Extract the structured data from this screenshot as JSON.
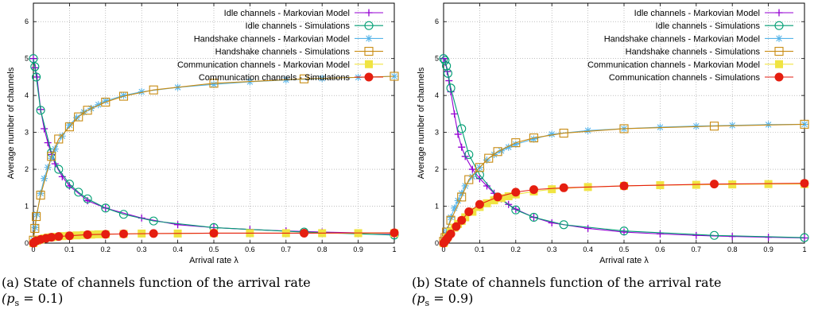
{
  "chart_data": [
    {
      "type": "line",
      "xlabel": "Arrival rate λ",
      "ylabel": "Average number of channels",
      "xlim": [
        0,
        1
      ],
      "ylim": [
        0,
        6.5
      ],
      "xticks": [
        "0",
        "0.1",
        "0.2",
        "0.3",
        "0.4",
        "0.5",
        "0.6",
        "0.7",
        "0.8",
        "0.9",
        "1"
      ],
      "yticks": [
        "0",
        "1",
        "2",
        "3",
        "4",
        "5",
        "6"
      ],
      "grid": true,
      "legend_position": "top-right",
      "series": [
        {
          "name": "Idle channels - Markovian Model",
          "color": "#9400d3",
          "marker": "plus",
          "x": [
            0,
            0.005,
            0.01,
            0.02,
            0.03,
            0.04,
            0.05,
            0.06,
            0.08,
            0.1,
            0.15,
            0.2,
            0.3,
            0.4,
            0.5,
            0.6,
            0.7,
            0.8,
            0.9,
            1
          ],
          "y": [
            5.0,
            4.75,
            4.5,
            3.62,
            3.1,
            2.72,
            2.4,
            2.15,
            1.8,
            1.55,
            1.15,
            0.95,
            0.68,
            0.5,
            0.42,
            0.37,
            0.33,
            0.3,
            0.28,
            0.25
          ]
        },
        {
          "name": "Idle channels - Simulations",
          "color": "#009e73",
          "marker": "circle",
          "x": [
            0,
            0.004,
            0.008,
            0.02,
            0.05,
            0.07,
            0.1,
            0.125,
            0.15,
            0.2,
            0.25,
            0.333,
            0.5,
            0.75,
            1
          ],
          "y": [
            5.0,
            4.78,
            4.5,
            3.6,
            2.45,
            2.0,
            1.6,
            1.38,
            1.2,
            0.95,
            0.78,
            0.6,
            0.42,
            0.3,
            0.22
          ]
        },
        {
          "name": "Handshake channels - Markovian Model",
          "color": "#56b4e9",
          "marker": "star",
          "x": [
            0,
            0.005,
            0.01,
            0.02,
            0.03,
            0.04,
            0.05,
            0.06,
            0.08,
            0.1,
            0.12,
            0.14,
            0.16,
            0.18,
            0.2,
            0.25,
            0.3,
            0.4,
            0.5,
            0.6,
            0.7,
            0.8,
            0.9,
            1
          ],
          "y": [
            0.1,
            0.42,
            0.78,
            1.35,
            1.75,
            2.05,
            2.3,
            2.55,
            2.9,
            3.2,
            3.4,
            3.55,
            3.65,
            3.75,
            3.85,
            4.0,
            4.1,
            4.22,
            4.3,
            4.37,
            4.42,
            4.46,
            4.49,
            4.52
          ]
        },
        {
          "name": "Handshake channels - Simulations",
          "color": "#c88a10",
          "marker": "square",
          "x": [
            0,
            0.004,
            0.008,
            0.02,
            0.05,
            0.07,
            0.1,
            0.125,
            0.15,
            0.2,
            0.25,
            0.333,
            0.5,
            0.75,
            1
          ],
          "y": [
            0.08,
            0.4,
            0.72,
            1.3,
            2.35,
            2.82,
            3.15,
            3.42,
            3.6,
            3.82,
            3.98,
            4.15,
            4.33,
            4.45,
            4.52
          ]
        },
        {
          "name": "Communication channels - Markovian Model",
          "color": "#f0e442",
          "marker": "filled-square",
          "x": [
            0,
            0.01,
            0.02,
            0.03,
            0.04,
            0.05,
            0.06,
            0.08,
            0.1,
            0.12,
            0.14,
            0.16,
            0.18,
            0.2,
            0.25,
            0.3,
            0.4,
            0.5,
            0.6,
            0.7,
            0.8,
            0.9,
            1
          ],
          "y": [
            0,
            0.06,
            0.1,
            0.13,
            0.15,
            0.16,
            0.17,
            0.19,
            0.2,
            0.21,
            0.22,
            0.23,
            0.24,
            0.24,
            0.25,
            0.26,
            0.26,
            0.27,
            0.27,
            0.27,
            0.27,
            0.27,
            0.27
          ]
        },
        {
          "name": "Communication channels - Simulations",
          "color": "#e51e10",
          "marker": "filled-circle",
          "x": [
            0,
            0.004,
            0.008,
            0.02,
            0.035,
            0.05,
            0.07,
            0.1,
            0.15,
            0.2,
            0.25,
            0.333,
            0.5,
            0.75,
            1
          ],
          "y": [
            0,
            0.04,
            0.06,
            0.1,
            0.13,
            0.16,
            0.18,
            0.2,
            0.23,
            0.24,
            0.25,
            0.26,
            0.27,
            0.27,
            0.28
          ]
        }
      ]
    },
    {
      "type": "line",
      "xlabel": "Arrival rate λ",
      "ylabel": "Average number of channels",
      "xlim": [
        0,
        1
      ],
      "ylim": [
        0,
        6.5
      ],
      "xticks": [
        "0",
        "0.1",
        "0.2",
        "0.3",
        "0.4",
        "0.5",
        "0.6",
        "0.7",
        "0.8",
        "0.9",
        "1"
      ],
      "yticks": [
        "0",
        "1",
        "2",
        "3",
        "4",
        "5",
        "6"
      ],
      "grid": true,
      "legend_position": "top-right",
      "series": [
        {
          "name": "Idle channels - Markovian Model",
          "color": "#9400d3",
          "marker": "plus",
          "x": [
            0,
            0.005,
            0.01,
            0.015,
            0.02,
            0.03,
            0.04,
            0.05,
            0.06,
            0.08,
            0.1,
            0.12,
            0.14,
            0.16,
            0.18,
            0.2,
            0.25,
            0.3,
            0.4,
            0.5,
            0.6,
            0.7,
            0.8,
            0.9,
            1
          ],
          "y": [
            5.0,
            4.9,
            4.65,
            4.4,
            4.1,
            3.5,
            2.95,
            2.6,
            2.35,
            2.0,
            1.75,
            1.55,
            1.35,
            1.2,
            1.05,
            0.92,
            0.7,
            0.55,
            0.4,
            0.3,
            0.25,
            0.21,
            0.18,
            0.16,
            0.14
          ]
        },
        {
          "name": "Idle channels - Simulations",
          "color": "#009e73",
          "marker": "circle",
          "x": [
            0,
            0.004,
            0.008,
            0.012,
            0.02,
            0.05,
            0.07,
            0.1,
            0.15,
            0.2,
            0.25,
            0.333,
            0.5,
            0.75,
            1
          ],
          "y": [
            5.0,
            4.95,
            4.8,
            4.6,
            4.2,
            3.1,
            2.4,
            1.85,
            1.25,
            0.9,
            0.7,
            0.5,
            0.33,
            0.21,
            0.15
          ]
        },
        {
          "name": "Handshake channels - Markovian Model",
          "color": "#56b4e9",
          "marker": "star",
          "x": [
            0,
            0.005,
            0.01,
            0.02,
            0.03,
            0.04,
            0.05,
            0.06,
            0.08,
            0.1,
            0.12,
            0.14,
            0.16,
            0.18,
            0.2,
            0.25,
            0.3,
            0.4,
            0.5,
            0.6,
            0.7,
            0.8,
            0.9,
            1
          ],
          "y": [
            0.05,
            0.2,
            0.35,
            0.7,
            0.95,
            1.15,
            1.35,
            1.55,
            1.8,
            2.05,
            2.25,
            2.4,
            2.5,
            2.6,
            2.68,
            2.82,
            2.95,
            3.05,
            3.1,
            3.14,
            3.17,
            3.19,
            3.21,
            3.22
          ]
        },
        {
          "name": "Handshake channels - Simulations",
          "color": "#c88a10",
          "marker": "square",
          "x": [
            0,
            0.004,
            0.008,
            0.02,
            0.05,
            0.07,
            0.1,
            0.125,
            0.15,
            0.2,
            0.25,
            0.333,
            0.5,
            0.75,
            1
          ],
          "y": [
            0.05,
            0.15,
            0.3,
            0.62,
            1.25,
            1.72,
            2.05,
            2.3,
            2.48,
            2.72,
            2.85,
            2.98,
            3.1,
            3.17,
            3.22
          ]
        },
        {
          "name": "Communication channels - Markovian Model",
          "color": "#f0e442",
          "marker": "filled-square",
          "x": [
            0,
            0.01,
            0.02,
            0.03,
            0.04,
            0.05,
            0.06,
            0.08,
            0.1,
            0.12,
            0.14,
            0.16,
            0.18,
            0.2,
            0.25,
            0.3,
            0.4,
            0.5,
            0.6,
            0.7,
            0.8,
            0.9,
            1
          ],
          "y": [
            0,
            0.15,
            0.3,
            0.42,
            0.52,
            0.6,
            0.7,
            0.85,
            0.98,
            1.08,
            1.16,
            1.22,
            1.27,
            1.32,
            1.4,
            1.46,
            1.52,
            1.55,
            1.57,
            1.58,
            1.59,
            1.6,
            1.6
          ]
        },
        {
          "name": "Communication channels - Simulations",
          "color": "#e51e10",
          "marker": "filled-circle",
          "x": [
            0,
            0.004,
            0.008,
            0.012,
            0.02,
            0.035,
            0.05,
            0.07,
            0.1,
            0.15,
            0.2,
            0.25,
            0.333,
            0.5,
            0.75,
            1
          ],
          "y": [
            0,
            0.05,
            0.1,
            0.15,
            0.25,
            0.45,
            0.62,
            0.85,
            1.05,
            1.25,
            1.38,
            1.45,
            1.5,
            1.55,
            1.6,
            1.62
          ]
        }
      ]
    }
  ],
  "captions": [
    {
      "line1": "(a) State of channels function of the arrival rate",
      "line2": "(p",
      "sub": "s",
      "line2_rest": " = 0.1)"
    },
    {
      "line1": "(b) State of channels function of the arrival rate",
      "line2": "(p",
      "sub": "s",
      "line2_rest": " = 0.9)"
    }
  ]
}
